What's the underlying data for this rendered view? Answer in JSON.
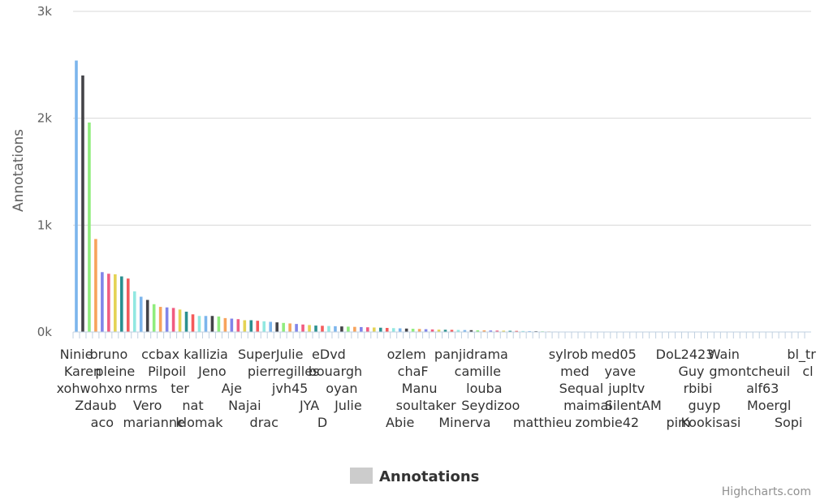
{
  "chart_data": {
    "type": "bar",
    "ylabel": "Annotations",
    "ylim": [
      0,
      3000
    ],
    "yticks": [
      0,
      1000,
      2000,
      3000
    ],
    "ytick_labels": [
      "0k",
      "1k",
      "2k",
      "3k"
    ],
    "grid": true,
    "legend": {
      "position": "bottom-center",
      "label": "Annotations",
      "swatch_color": "#cccccc"
    },
    "credits": "Highcharts.com",
    "palette": [
      "#7cb5ec",
      "#434348",
      "#90ed7d",
      "#f7a35c",
      "#8085e9",
      "#f15c80",
      "#e4d354",
      "#2b908f",
      "#f45b5b",
      "#91e8e1"
    ],
    "categories": [
      "Ninie",
      "Karen",
      "xohwohxo",
      "Zdaub",
      "aco",
      "bruno",
      "pleine",
      "",
      "",
      "",
      "nrms",
      "Vero",
      "marianne",
      "ccbax",
      "Pilpoil",
      "",
      "ter",
      "",
      "nat",
      "klomak",
      "kallizia",
      "Jeno",
      "",
      "",
      "Aje",
      "",
      "Najai",
      "",
      "",
      "drac",
      "SuperJulie",
      "",
      "pierregilles",
      "jvh45",
      "",
      "",
      "JYA",
      "",
      "D",
      "eDvd",
      "bouargh",
      "oyan",
      "Julie",
      "",
      "",
      "",
      "",
      "",
      "",
      "",
      "Abie",
      "ozlem",
      "chaF",
      "Manu",
      "soultaker",
      "",
      "",
      "",
      "",
      "",
      "Minerva",
      "panjidrama",
      "camille",
      "louba",
      "Seydizoo",
      "",
      "",
      "",
      "",
      "",
      "",
      "",
      "matthieu",
      "",
      "",
      "",
      "sylrob",
      "med",
      "Sequal",
      "maimai",
      "",
      "",
      "zombie42",
      "med05",
      "yave",
      "jupltv",
      "SilentAM",
      "",
      "",
      "",
      "",
      "",
      "",
      "pim",
      "DoL2423",
      "Guy",
      "rbibi",
      "guyp",
      "Kookisasi",
      "",
      "Wain",
      "",
      "",
      "",
      "gmontcheuil",
      "",
      "alf63",
      "Moergl",
      "",
      "",
      "Sopi",
      "",
      "bl_tr",
      "cl"
    ],
    "series": [
      {
        "name": "Annotations",
        "values": [
          2540,
          2400,
          1960,
          870,
          560,
          545,
          540,
          520,
          500,
          380,
          330,
          300,
          260,
          235,
          230,
          225,
          210,
          190,
          165,
          150,
          150,
          150,
          145,
          130,
          125,
          120,
          110,
          110,
          105,
          100,
          95,
          90,
          85,
          80,
          75,
          70,
          65,
          60,
          58,
          56,
          54,
          52,
          50,
          48,
          46,
          44,
          42,
          40,
          38,
          36,
          34,
          32,
          30,
          28,
          26,
          24,
          22,
          21,
          20,
          19,
          18,
          17,
          16,
          15,
          14,
          13,
          12,
          11,
          10,
          9,
          8,
          7,
          6,
          5,
          4,
          3,
          3,
          2,
          2,
          1,
          0,
          0,
          0,
          0,
          0,
          0,
          0,
          0,
          0,
          0,
          0,
          0,
          0,
          0,
          0,
          0,
          0,
          0,
          0,
          0,
          0,
          0,
          0,
          0,
          0,
          0,
          0,
          0,
          0,
          0,
          0,
          0,
          0,
          0
        ]
      }
    ]
  }
}
